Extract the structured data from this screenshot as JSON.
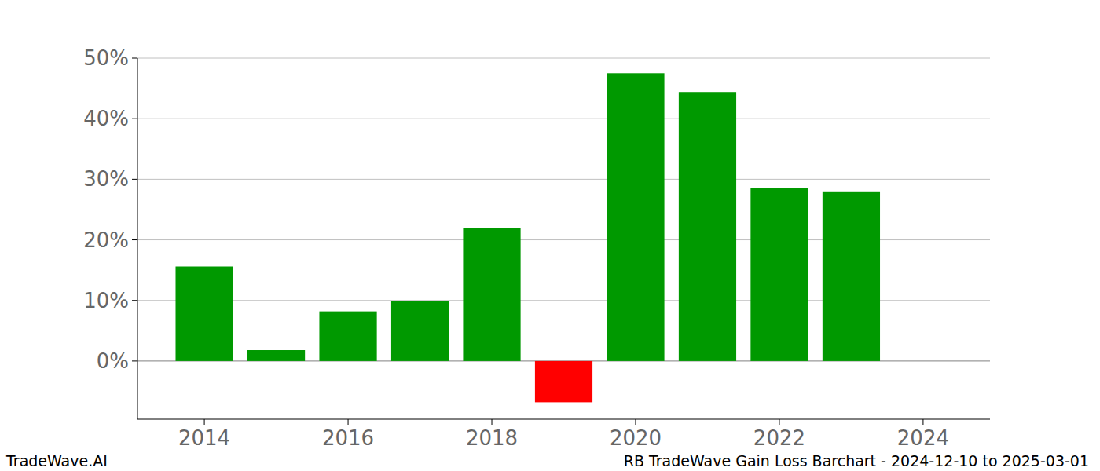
{
  "chart_data": {
    "type": "bar",
    "title": "RB TradeWave Gain Loss Barchart - 2024-12-10 to 2025-03-01",
    "annotations": [
      "TradeWave.AI"
    ],
    "x": [
      2014,
      2015,
      2016,
      2017,
      2018,
      2019,
      2020,
      2021,
      2022,
      2023
    ],
    "values": [
      15.6,
      1.8,
      8.2,
      9.9,
      21.9,
      -6.8,
      47.5,
      44.4,
      28.5,
      28.0
    ],
    "colors": [
      "#009900",
      "#009900",
      "#009900",
      "#009900",
      "#009900",
      "#ff0000",
      "#009900",
      "#009900",
      "#009900",
      "#009900"
    ],
    "xlim": [
      2013.07,
      2024.93
    ],
    "xticks": [
      2014,
      2016,
      2018,
      2020,
      2022,
      2024
    ],
    "ylim": [
      -9.6,
      50
    ],
    "yticks": [
      {
        "value": 0,
        "label": "0%"
      },
      {
        "value": 10,
        "label": "10%"
      },
      {
        "value": 20,
        "label": "20%"
      },
      {
        "value": 30,
        "label": "30%"
      },
      {
        "value": 40,
        "label": "40%"
      },
      {
        "value": 50,
        "label": "50%"
      }
    ],
    "grid": true
  }
}
